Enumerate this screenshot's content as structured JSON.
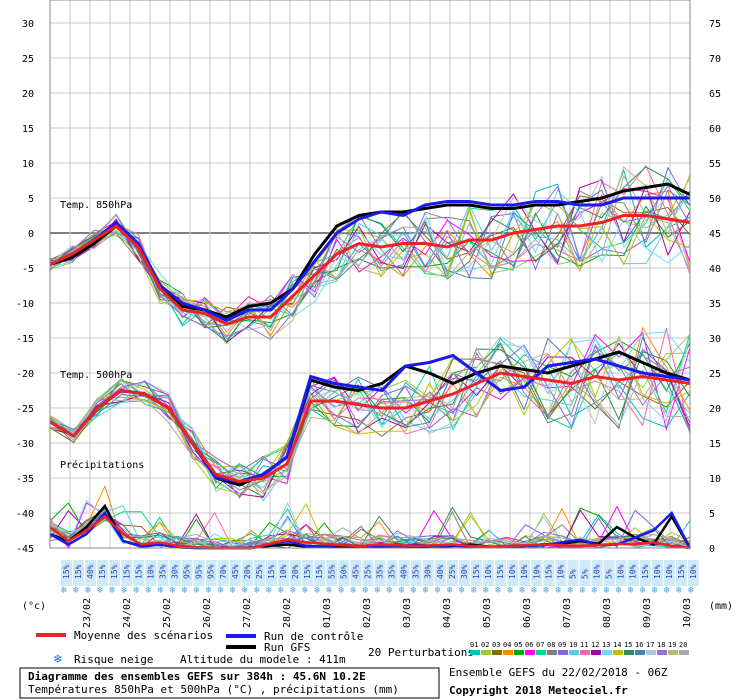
{
  "chart_data": {
    "type": "line",
    "left_axis_ticks": [
      30,
      25,
      20,
      15,
      10,
      5,
      0,
      -5,
      -10,
      -15,
      -20,
      -25,
      -30,
      -35,
      -40,
      -45
    ],
    "right_axis_ticks": [
      75,
      70,
      65,
      60,
      55,
      50,
      45,
      40,
      35,
      30,
      25,
      20,
      15,
      10,
      5,
      0
    ],
    "left_unit": "(°c)",
    "right_unit": "(mm)",
    "x_dates": [
      "23/02",
      "24/02",
      "25/02",
      "26/02",
      "27/02",
      "28/02",
      "01/03",
      "02/03",
      "03/03",
      "04/03",
      "05/03",
      "06/03",
      "07/03",
      "08/03",
      "09/03",
      "10/03"
    ],
    "panel_labels": {
      "t850": "Temp. 850hPa",
      "t500": "Temp. 500hPa",
      "precip": "Précipitations"
    },
    "snow_risk_percent": [
      "15%",
      "15%",
      "40%",
      "15%",
      "15%",
      "15%",
      "15%",
      "10%",
      "35%",
      "30%",
      "95%",
      "95%",
      "95%",
      "70%",
      "45%",
      "20%",
      "25%",
      "15%",
      "10%",
      "20%",
      "15%",
      "15%",
      "55%",
      "50%",
      "45%",
      "25%",
      "35%",
      "35%",
      "40%",
      "35%",
      "30%",
      "40%",
      "25%",
      "30%",
      "15%",
      "10%",
      "15%",
      "10%",
      "10%",
      "10%",
      "15%",
      "10%",
      "5%",
      "5%",
      "10%",
      "5%",
      "10%",
      "10%",
      "15%",
      "10%",
      "10%",
      "15%",
      "10%"
    ],
    "series_t850": [
      {
        "name": "Moyenne des scénarios",
        "color": "#ee2222",
        "values": [
          -4.5,
          -3,
          -1,
          1,
          -2,
          -8,
          -11,
          -11.5,
          -13,
          -12,
          -12,
          -9,
          -6,
          -3,
          -1.5,
          -2,
          -1.5,
          -1.5,
          -2,
          -1,
          -1,
          0,
          0.5,
          1,
          1,
          1.5,
          2.5,
          2.5,
          2,
          1.5
        ]
      },
      {
        "name": "Run de contrôle",
        "color": "#1a1aee",
        "values": [
          -4.5,
          -3,
          -1,
          1.5,
          -1.5,
          -7.5,
          -10,
          -11,
          -12.5,
          -11,
          -11,
          -8,
          -4,
          0,
          2,
          3,
          2.5,
          4,
          4.5,
          4.5,
          4,
          4,
          4.5,
          4.5,
          4,
          4,
          5,
          5,
          5,
          5
        ]
      },
      {
        "name": "Run GFS",
        "color": "#000000",
        "values": [
          -4.5,
          -3.5,
          -1.5,
          1,
          -2,
          -8,
          -10.5,
          -11,
          -12,
          -10.5,
          -10,
          -8,
          -3,
          1,
          2.5,
          3,
          3,
          3.5,
          4,
          4,
          3.5,
          3.5,
          4,
          4,
          4.5,
          5,
          6,
          6.5,
          7,
          5.5
        ]
      }
    ],
    "series_t500": [
      {
        "name": "Moyenne des scénarios",
        "color": "#ee2222",
        "values": [
          -27,
          -29,
          -25,
          -22.5,
          -23,
          -25,
          -30,
          -34.5,
          -35.5,
          -35,
          -33,
          -24,
          -24,
          -24.5,
          -25,
          -25,
          -24,
          -23,
          -21.5,
          -20,
          -20.5,
          -21,
          -21.5,
          -20.5,
          -21,
          -20.5,
          -21,
          -21.5
        ]
      },
      {
        "name": "Run de contrôle",
        "color": "#1a1aee",
        "values": [
          -27,
          -29,
          -25,
          -22.5,
          -23,
          -25,
          -30,
          -35,
          -35.5,
          -34.5,
          -32,
          -20.5,
          -21.5,
          -22,
          -22.5,
          -19,
          -18.5,
          -17.5,
          -20,
          -22.5,
          -22,
          -19,
          -18.5,
          -18,
          -19,
          -20,
          -20.5,
          -21
        ]
      },
      {
        "name": "Run GFS",
        "color": "#000000",
        "values": [
          -27,
          -29,
          -25,
          -22.5,
          -23,
          -25,
          -30,
          -35,
          -36,
          -34.5,
          -32,
          -21,
          -22,
          -22.5,
          -21.5,
          -19,
          -20,
          -21.5,
          -20,
          -19,
          -19.5,
          -20,
          -19,
          -18,
          -17,
          -18.5,
          -20,
          -21
        ]
      }
    ],
    "series_precip_mm": [
      {
        "name": "Moyenne des scénarios",
        "color": "#ee2222",
        "values": [
          3,
          1,
          2.5,
          4.5,
          2,
          0.5,
          0.8,
          0.3,
          0.1,
          0,
          0,
          0,
          0.6,
          1.2,
          0.8,
          0.6,
          0.4,
          0.3,
          0.5,
          0.4,
          0.3,
          0.4,
          0.5,
          0.3,
          0.2,
          0.3,
          0.4,
          0.5,
          0.4,
          0.3,
          0.4,
          0.6,
          0.5,
          0.8,
          0.3,
          0
        ]
      },
      {
        "name": "Run de contrôle",
        "color": "#1a1aee",
        "values": [
          2,
          0.5,
          2,
          5,
          1,
          0.2,
          0.5,
          0.1,
          0,
          0,
          0,
          0,
          0.5,
          1,
          0.3,
          0.2,
          0.5,
          0.2,
          0.3,
          0.1,
          0.5,
          0.2,
          0.4,
          0.2,
          0.1,
          0.2,
          0.3,
          0.4,
          0.8,
          1.2,
          0.4,
          0.5,
          1.5,
          2.5,
          5,
          0
        ]
      },
      {
        "name": "Run GFS",
        "color": "#000000",
        "values": [
          2,
          1,
          3,
          6,
          1,
          0.3,
          0.5,
          0.1,
          0,
          0,
          0,
          0,
          0.3,
          0.5,
          0.2,
          0.2,
          0.1,
          0.3,
          0.2,
          0.4,
          0.1,
          0.2,
          0.3,
          0.5,
          0.2,
          0.1,
          0.3,
          0.5,
          0.6,
          1,
          0.6,
          3,
          1.5,
          0.5,
          4.5,
          0
        ]
      }
    ],
    "ylim_left": [
      -45,
      30
    ],
    "ylim_right_mm": [
      0,
      75
    ],
    "grid": true
  },
  "legend": {
    "mean_label": "Moyenne des scénarios",
    "control_label": "Run de contrôle",
    "gfs_label": "Run GFS",
    "perturbations_label": "20 Perturbations",
    "snow_risk_label": "Risque neige",
    "altitude_label": "Altitude du modele : 411m",
    "perturbation_numbers": [
      "01",
      "02",
      "03",
      "04",
      "05",
      "06",
      "07",
      "08",
      "09",
      "10",
      "11",
      "12",
      "13",
      "14",
      "15",
      "16",
      "17",
      "18",
      "19",
      "20"
    ],
    "perturbation_colors": [
      "#00c0c0",
      "#9acd32",
      "#8b6914",
      "#ff8c00",
      "#00aa00",
      "#ff00ff",
      "#00dd88",
      "#808080",
      "#7b68ee",
      "#55ccee",
      "#ff66aa",
      "#aa00aa",
      "#66ddff",
      "#c0c000",
      "#2e8b57",
      "#4682b4",
      "#b0c4de",
      "#9370db",
      "#bdb76b",
      "#aaaaaa"
    ],
    "snow_icon": "snowflake-icon"
  },
  "footer": {
    "title": "Diagramme des ensembles GEFS sur 384h : 45.6N 10.2E",
    "subtitle": "Températures 850hPa et 500hPa (°C) , précipitations (mm)",
    "ensemble_label": "Ensemble GEFS du 22/02/2018 - 06Z",
    "copyright": "Copyright 2018 Meteociel.fr"
  }
}
